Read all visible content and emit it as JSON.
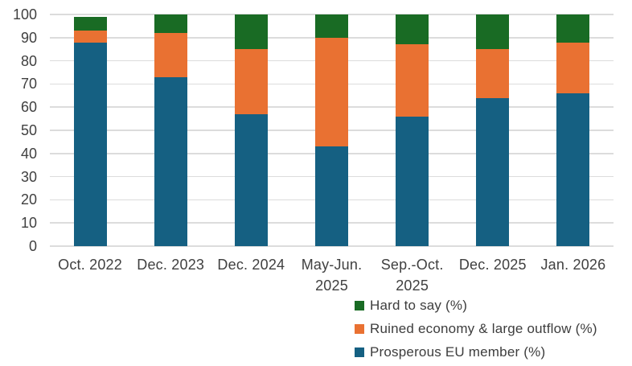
{
  "chart_data": {
    "type": "bar",
    "stacked": true,
    "title": "",
    "xlabel": "",
    "ylabel": "",
    "ylim": [
      0,
      100
    ],
    "yticks": [
      0,
      10,
      20,
      30,
      40,
      50,
      60,
      70,
      80,
      90,
      100
    ],
    "grid": true,
    "legend_position": "bottom-right",
    "categories": [
      "Oct. 2022",
      "Dec. 2023",
      "Dec. 2024",
      "May-Jun.\n2025",
      "Sep.-Oct.\n2025",
      "Dec. 2025",
      "Jan. 2026"
    ],
    "series": [
      {
        "key": "prosperous-eu-member",
        "name": "Prosperous EU member (%)",
        "color": "#156082",
        "values": [
          88,
          73,
          57,
          43,
          56,
          64,
          66
        ]
      },
      {
        "key": "ruined-economy-large-outflow",
        "name": "Ruined economy & large outflow (%)",
        "color": "#E97132",
        "values": [
          5,
          19,
          28,
          47,
          31,
          21,
          22
        ]
      },
      {
        "key": "hard-to-say",
        "name": "Hard to say (%)",
        "color": "#196B24",
        "values": [
          6,
          8,
          15,
          10,
          13,
          15,
          12
        ]
      }
    ],
    "stack_totals": [
      99,
      100,
      100,
      100,
      100,
      100,
      100
    ]
  },
  "legend": {
    "items": [
      {
        "label": "Hard to say (%)",
        "color": "#196B24"
      },
      {
        "label": "Ruined economy & large outflow (%)",
        "color": "#E97132"
      },
      {
        "label": "Prosperous EU member (%)",
        "color": "#156082"
      }
    ]
  },
  "colors": {
    "gridline": "#dcdcdc",
    "axis_text": "#404040",
    "background": "#ffffff"
  }
}
